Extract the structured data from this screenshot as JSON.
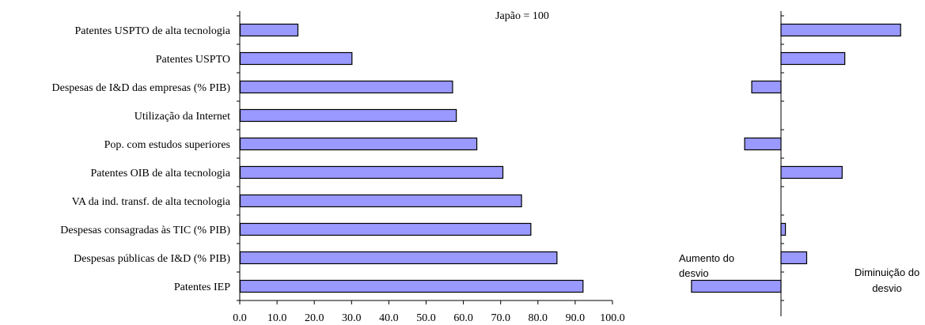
{
  "chart_data": [
    {
      "type": "bar",
      "orientation": "horizontal",
      "annotation": "Japão = 100",
      "categories": [
        "Patentes USPTO de alta tecnologia",
        "Patentes USPTO",
        "Despesas de I&D das empresas (% PIB)",
        "Utilização da Internet",
        "Pop. com estudos superiores",
        "Patentes OIB de alta tecnologia",
        "VA da ind. transf. de alta tecnologia",
        "Despesas consagradas às TIC (% PIB)",
        "Despesas públicas de I&D (% PIB)",
        "Patentes IEP"
      ],
      "values": [
        15.5,
        30.0,
        57.0,
        58.0,
        63.5,
        70.5,
        75.5,
        78.0,
        85.0,
        92.0
      ],
      "xlim": [
        0,
        100
      ],
      "xticks": [
        "0.0",
        "10.0",
        "20.0",
        "30.0",
        "40.0",
        "50.0",
        "60.0",
        "70.0",
        "80.0",
        "90.0",
        "100.0"
      ],
      "grid": false,
      "bar_color": "#9999ff"
    },
    {
      "type": "bar",
      "orientation": "horizontal",
      "categories": [
        "Patentes USPTO de alta tecnologia",
        "Patentes USPTO",
        "Despesas de I&D das empresas (% PIB)",
        "Utilização da Internet",
        "Pop. com estudos superiores",
        "Patentes OIB de alta tecnologia",
        "VA da ind. transf. de alta tecnologia",
        "Despesas consagradas às TIC (% PIB)",
        "Despesas públicas de I&D (% PIB)",
        "Patentes IEP"
      ],
      "values": [
        13.5,
        7.2,
        -3.3,
        0,
        -4.1,
        6.9,
        0,
        0.5,
        2.9,
        -10.1
      ],
      "xlim": [
        -11,
        17
      ],
      "axis_labels": {
        "left": "Aumento do desvio",
        "right": "Diminuição do desvio"
      },
      "grid": false,
      "bar_color": "#9999ff"
    }
  ]
}
